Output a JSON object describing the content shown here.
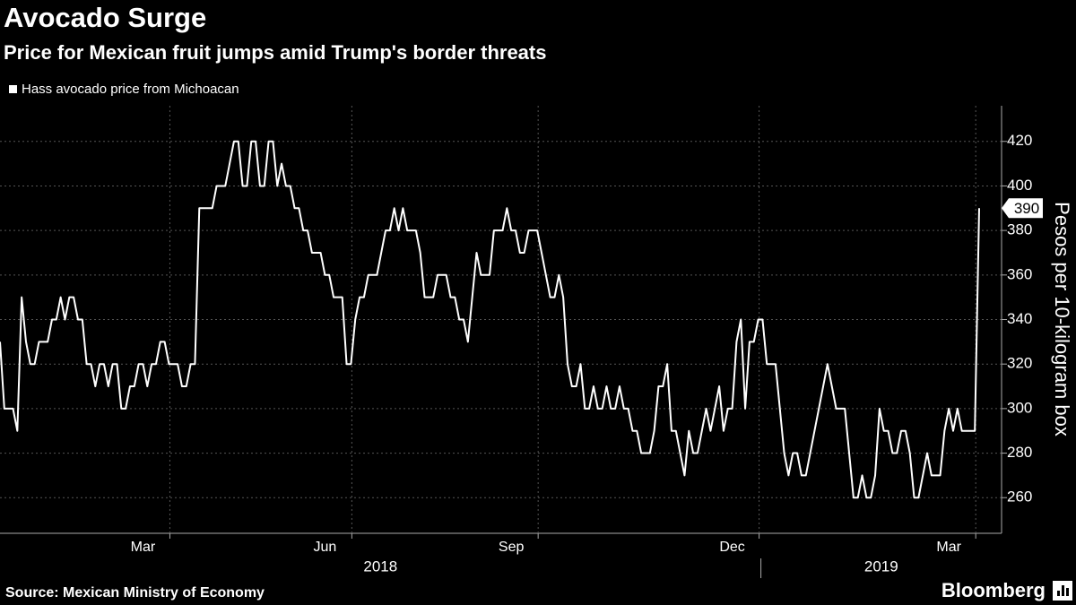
{
  "chart_data": {
    "type": "line",
    "title": "Avocado Surge",
    "subtitle": "Price for Mexican fruit jumps amid Trump's border threats",
    "y_axis_label": "Pesos per 10-kilogram box",
    "source": "Source: Mexican Ministry of Economy",
    "brand": "Bloomberg",
    "years": [
      "2018",
      "2019"
    ],
    "categories": [
      null,
      null,
      null,
      null,
      null,
      null,
      null,
      null,
      null,
      null,
      null,
      null,
      null,
      null,
      null,
      null,
      null,
      null,
      null,
      null,
      null,
      null,
      null,
      null,
      null,
      null,
      null,
      null,
      null,
      null,
      null,
      null,
      null,
      "Mar",
      null,
      null,
      null,
      null,
      null,
      null,
      null,
      null,
      null,
      null,
      null,
      null,
      null,
      null,
      null,
      null,
      null,
      null,
      null,
      null,
      null,
      null,
      null,
      null,
      null,
      null,
      null,
      null,
      null,
      null,
      null,
      null,
      null,
      null,
      null,
      null,
      null,
      null,
      null,
      null,
      null,
      "Jun",
      null,
      null,
      null,
      null,
      null,
      null,
      null,
      null,
      null,
      null,
      null,
      null,
      null,
      null,
      null,
      null,
      null,
      null,
      null,
      null,
      null,
      null,
      null,
      null,
      null,
      null,
      null,
      null,
      null,
      null,
      null,
      null,
      null,
      null,
      null,
      null,
      null,
      null,
      null,
      null,
      null,
      null,
      "Sep",
      null,
      null,
      null,
      null,
      null,
      null,
      null,
      null,
      null,
      null,
      null,
      null,
      null,
      null,
      null,
      null,
      null,
      null,
      null,
      null,
      null,
      null,
      null,
      null,
      null,
      null,
      null,
      null,
      null,
      null,
      null,
      null,
      null,
      null,
      null,
      null,
      null,
      null,
      null,
      null,
      null,
      null,
      null,
      null,
      null,
      null,
      null,
      null,
      null,
      null,
      "Dec",
      null,
      null,
      null,
      null,
      null,
      null,
      null,
      null,
      null,
      null,
      null,
      null,
      null,
      null,
      null,
      null,
      null,
      null,
      null,
      null,
      null,
      null,
      null,
      null,
      null,
      null,
      null,
      null,
      null,
      null,
      null,
      null,
      null,
      null,
      null,
      null,
      null,
      null,
      null,
      null,
      null,
      null,
      null,
      null,
      null,
      null,
      null,
      null,
      null,
      "Mar",
      null,
      null,
      null,
      null,
      null,
      null,
      null
    ],
    "series": [
      {
        "name": "Hass avocado price from Michoacan",
        "color": "#ffffff",
        "values": [
          330,
          300,
          300,
          300,
          290,
          350,
          330,
          320,
          320,
          330,
          330,
          330,
          340,
          340,
          350,
          340,
          350,
          350,
          340,
          340,
          320,
          320,
          310,
          320,
          320,
          310,
          320,
          320,
          300,
          300,
          310,
          310,
          320,
          320,
          310,
          320,
          320,
          330,
          330,
          320,
          320,
          320,
          310,
          310,
          320,
          320,
          390,
          390,
          390,
          390,
          400,
          400,
          400,
          410,
          420,
          420,
          400,
          400,
          420,
          420,
          400,
          400,
          420,
          420,
          400,
          410,
          400,
          400,
          390,
          390,
          380,
          380,
          370,
          370,
          370,
          360,
          360,
          350,
          350,
          350,
          320,
          320,
          340,
          350,
          350,
          360,
          360,
          360,
          370,
          380,
          380,
          390,
          380,
          390,
          380,
          380,
          380,
          370,
          350,
          350,
          350,
          360,
          360,
          360,
          350,
          350,
          340,
          340,
          330,
          350,
          370,
          360,
          360,
          360,
          380,
          380,
          380,
          390,
          380,
          380,
          370,
          370,
          380,
          380,
          380,
          370,
          360,
          350,
          350,
          360,
          350,
          320,
          310,
          310,
          320,
          300,
          300,
          310,
          300,
          300,
          310,
          300,
          300,
          310,
          300,
          300,
          290,
          290,
          280,
          280,
          280,
          290,
          310,
          310,
          320,
          290,
          290,
          280,
          270,
          290,
          280,
          280,
          290,
          300,
          290,
          300,
          310,
          290,
          300,
          300,
          330,
          340,
          300,
          330,
          330,
          340,
          340,
          320,
          320,
          320,
          300,
          280,
          270,
          280,
          280,
          270,
          270,
          280,
          290,
          300,
          310,
          320,
          310,
          300,
          300,
          300,
          280,
          260,
          260,
          270,
          260,
          260,
          270,
          300,
          290,
          290,
          280,
          280,
          290,
          290,
          280,
          260,
          260,
          270,
          280,
          270,
          270,
          270,
          290,
          300,
          290,
          300,
          290,
          290,
          290,
          290,
          390
        ]
      }
    ],
    "ylim": [
      244,
      436
    ],
    "yticks": [
      260,
      280,
      300,
      320,
      340,
      360,
      380,
      400,
      420
    ],
    "grid": true
  }
}
